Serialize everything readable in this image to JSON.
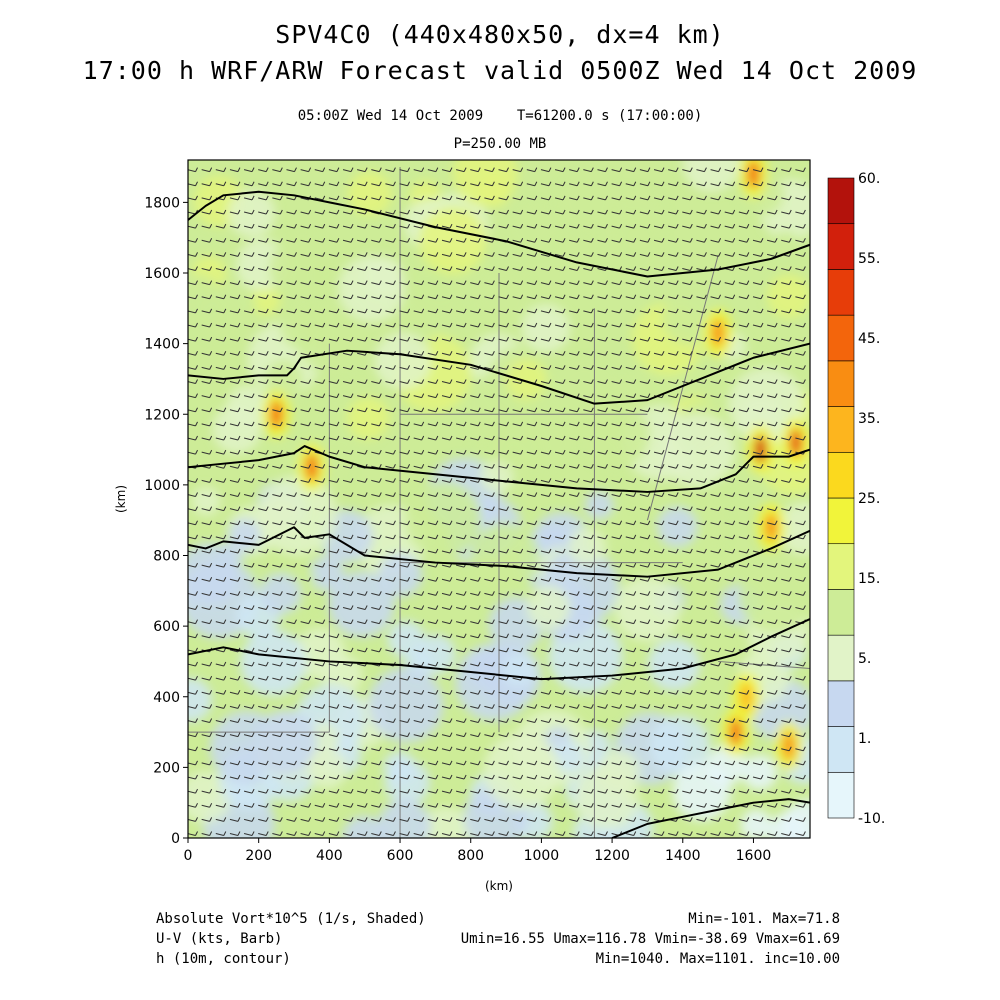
{
  "header": {
    "title": "SPV4C0 (440x480x50, dx=4 km)",
    "forecast": "17:00 h WRF/ARW Forecast valid 0500Z Wed 14 Oct 2009",
    "valid_time": "05:00Z Wed 14 Oct 2009",
    "model_time": "T=61200.0 s (17:00:00)",
    "level": "P=250.00 MB"
  },
  "footer": {
    "field1_name": "Absolute Vort*10^5 (1/s, Shaded)",
    "field1_stats": "Min=-101. Max=71.8",
    "field2_name": "U-V (kts, Barb)",
    "field2_stats": "Umin=16.55 Umax=116.78 Vmin=-38.69 Vmax=61.69",
    "field3_name": "h (10m, contour)",
    "field3_stats": "Min=1040. Max=1101. inc=10.00"
  },
  "colors": {
    "levels": [
      "#e6f6fb",
      "#cfe6f4",
      "#c7d8f0",
      "#e1f3c8",
      "#cdec97",
      "#e3f57c",
      "#f1f43a",
      "#fbd91e",
      "#fdb51e",
      "#f98d12",
      "#f3650c",
      "#e73d09",
      "#d2200c",
      "#b3120c"
    ],
    "contour": "#000000",
    "barb": "#333333",
    "border": "#777777"
  },
  "chart_data": {
    "type": "heatmap",
    "xlabel": "(km)",
    "ylabel": "(km)",
    "xlim": [
      0,
      1760
    ],
    "ylim": [
      0,
      1920
    ],
    "xticks": [
      "0",
      "200",
      "400",
      "600",
      "800",
      "1000",
      "1200",
      "1400",
      "1600"
    ],
    "yticks": [
      "0",
      "200",
      "400",
      "600",
      "800",
      "1000",
      "1200",
      "1400",
      "1600",
      "1800"
    ],
    "colorbar": {
      "labels": [
        "-10.",
        "1.",
        "5.",
        "15.",
        "25.",
        "35.",
        "45.",
        "55.",
        "60."
      ]
    },
    "contours": [
      {
        "x": [
          0,
          50,
          100,
          200,
          300,
          400,
          500,
          700,
          900,
          1100,
          1300,
          1500,
          1650,
          1760
        ],
        "y": [
          1750,
          1790,
          1820,
          1830,
          1820,
          1800,
          1780,
          1730,
          1690,
          1630,
          1590,
          1610,
          1640,
          1680
        ]
      },
      {
        "x": [
          0,
          100,
          200,
          280,
          300,
          320,
          450,
          600,
          800,
          1000,
          1150,
          1300,
          1450,
          1600,
          1760
        ],
        "y": [
          1310,
          1300,
          1310,
          1310,
          1330,
          1360,
          1380,
          1370,
          1340,
          1280,
          1230,
          1240,
          1300,
          1360,
          1400
        ]
      },
      {
        "x": [
          0,
          100,
          200,
          300,
          330,
          400,
          500,
          700,
          900,
          1100,
          1300,
          1450,
          1550,
          1600,
          1700,
          1760
        ],
        "y": [
          1050,
          1060,
          1070,
          1090,
          1110,
          1080,
          1050,
          1030,
          1010,
          990,
          980,
          990,
          1030,
          1080,
          1080,
          1100
        ]
      },
      {
        "x": [
          0,
          50,
          100,
          200,
          280,
          300,
          330,
          400,
          500,
          700,
          900,
          1100,
          1300,
          1500,
          1650,
          1760
        ],
        "y": [
          830,
          820,
          840,
          830,
          870,
          880,
          850,
          860,
          800,
          780,
          770,
          750,
          740,
          760,
          820,
          870
        ]
      },
      {
        "x": [
          0,
          100,
          200,
          400,
          600,
          800,
          1000,
          1200,
          1400,
          1550,
          1650,
          1760
        ],
        "y": [
          520,
          540,
          520,
          500,
          490,
          470,
          450,
          460,
          480,
          520,
          570,
          620
        ]
      },
      {
        "x": [
          1200,
          1300,
          1400,
          1500,
          1600,
          1700,
          1760
        ],
        "y": [
          0,
          40,
          60,
          80,
          100,
          110,
          100
        ]
      }
    ],
    "vorticity_features": [
      {
        "x": 350,
        "y": 1050,
        "value": 35
      },
      {
        "x": 250,
        "y": 1200,
        "value": 35
      },
      {
        "x": 1620,
        "y": 1100,
        "value": 45
      },
      {
        "x": 1720,
        "y": 1120,
        "value": 40
      },
      {
        "x": 1650,
        "y": 880,
        "value": 30
      },
      {
        "x": 1500,
        "y": 1430,
        "value": 30
      },
      {
        "x": 1600,
        "y": 1880,
        "value": 35
      },
      {
        "x": 1550,
        "y": 300,
        "value": 35
      },
      {
        "x": 1700,
        "y": 260,
        "value": 30
      },
      {
        "x": 1580,
        "y": 400,
        "value": 25
      }
    ]
  }
}
